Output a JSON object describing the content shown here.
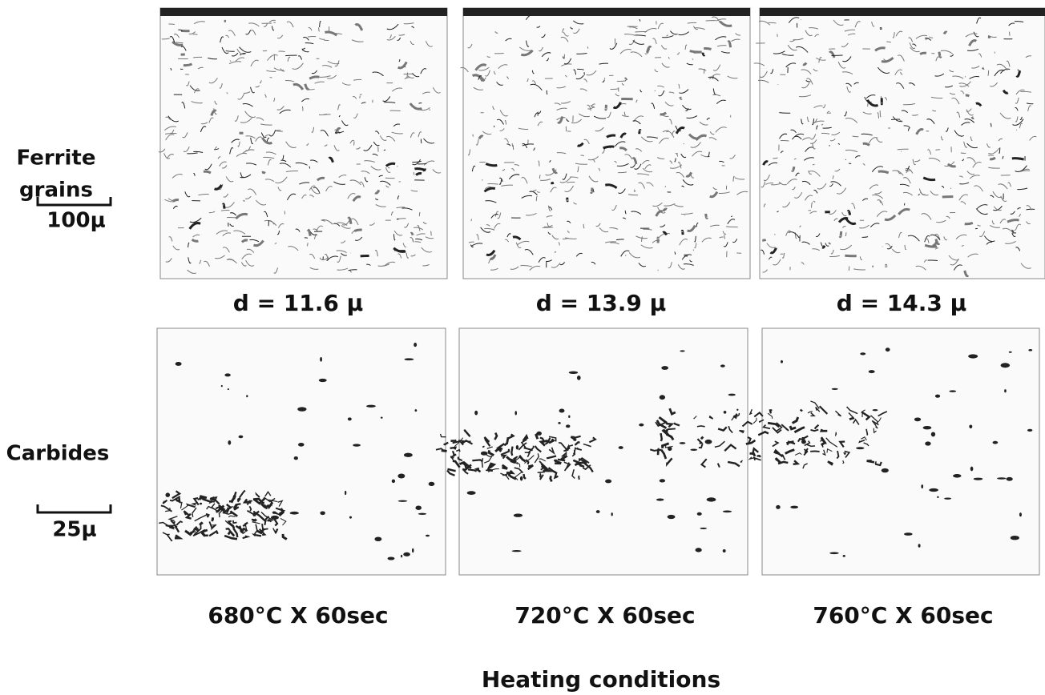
{
  "rows": [
    {
      "label": [
        "Ferrite",
        "grains"
      ],
      "scale": "100μ",
      "captions": [
        "d = 11.6 μ",
        "d = 13.9 μ",
        "d = 14.3 μ"
      ]
    },
    {
      "label": [
        "Carbides"
      ],
      "scale": "25μ"
    }
  ],
  "columns": [
    "680°C X 60sec",
    "720°C X 60sec",
    "760°C X 60sec"
  ],
  "footer": "Heating conditions"
}
